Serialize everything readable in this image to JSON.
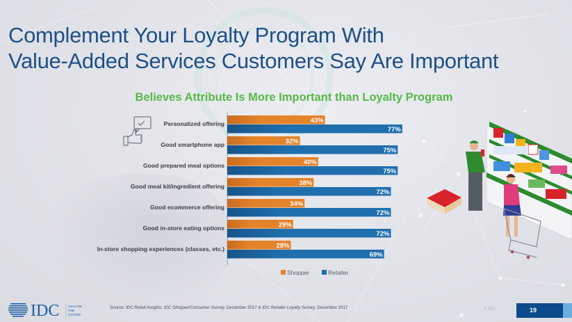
{
  "slide": {
    "title_line1": "Complement Your Loyalty Program With",
    "title_line2": "Value-Added Services Customers Say Are Important",
    "page_number": "19",
    "copyright": "© IDC"
  },
  "footer": {
    "logo_text": "IDC",
    "logo_tagline": [
      "ANALYZE",
      "THE",
      "FUTURE"
    ],
    "source_prefix": "Source: ",
    "source_text": "IDC Retail Insights, IDC Shopper/Consumer Survey, ",
    "source_date1": "December 2017 & ",
    "source_text2": "IDC Retailer Loyalty Survey, ",
    "source_date2": "December 2017"
  },
  "colors": {
    "shopper": "#e5832a",
    "retailer": "#1f6fae",
    "title": "#1f4f86",
    "subtitle": "#58b848"
  },
  "chart_data": {
    "type": "bar",
    "orientation": "horizontal",
    "title": "Believes Attribute Is More Important than Loyalty Program",
    "categories": [
      "Personalized offering",
      "Good smartphone app",
      "Good prepared meal options",
      "Good meal kit/ingredient offering",
      "Good ecommerce offering",
      "Good in-store eating options",
      "In-store shopping experiences (classes, etc.)"
    ],
    "series": [
      {
        "name": "Shopper",
        "values": [
          43,
          32,
          40,
          38,
          34,
          29,
          28
        ]
      },
      {
        "name": "Retailer",
        "values": [
          77,
          75,
          75,
          72,
          72,
          72,
          69
        ]
      }
    ],
    "value_suffix": "%",
    "xlim": [
      0,
      100
    ],
    "grid": false,
    "legend": "bottom"
  }
}
